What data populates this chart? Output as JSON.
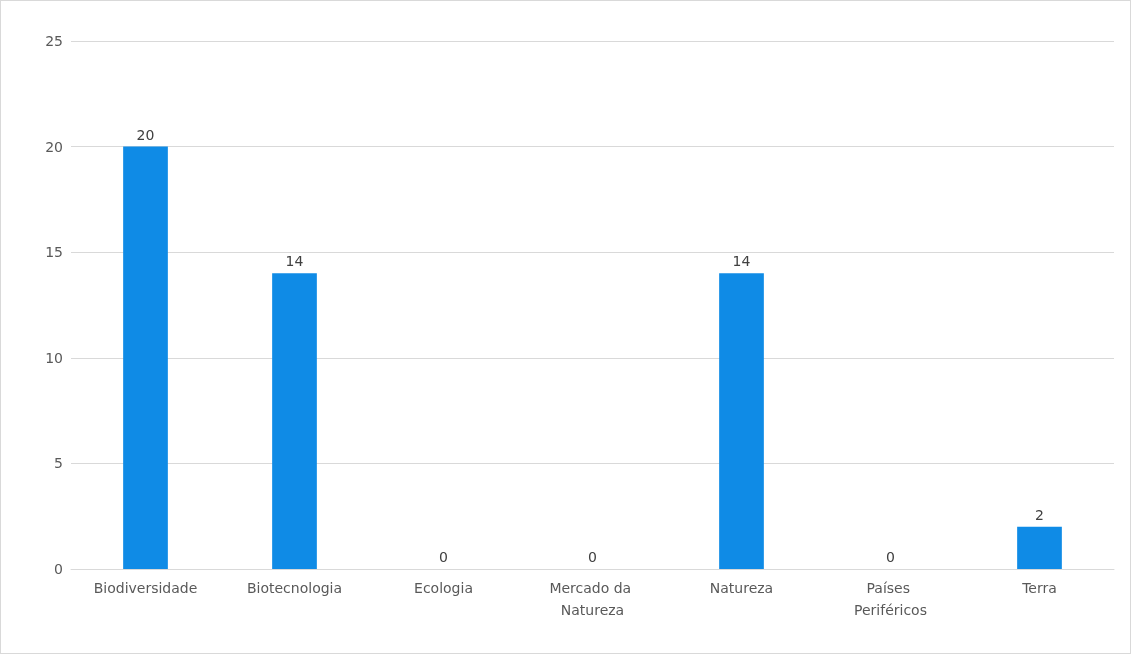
{
  "chart_data": {
    "type": "bar",
    "categories": [
      "Biodiversidade",
      "Biotecnologia",
      "Ecologia",
      "Mercado da Natureza",
      "Natureza",
      "Países Periféricos",
      "Terra"
    ],
    "values": [
      20,
      14,
      0,
      0,
      14,
      0,
      2
    ],
    "color": "#0f8be6",
    "ylim": [
      0,
      25
    ],
    "yticks": [
      0,
      5,
      10,
      15,
      20,
      25
    ],
    "grid": "y",
    "data_labels": true
  }
}
